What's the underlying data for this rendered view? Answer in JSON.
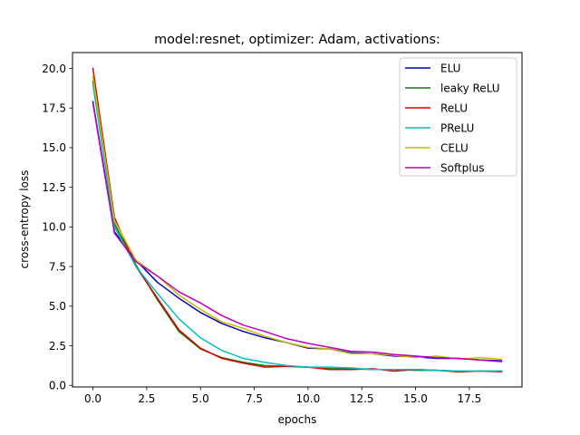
{
  "chart_data": {
    "type": "line",
    "title": "model:resnet, optimizer: Adam, activations:",
    "xlabel": "epochs",
    "ylabel": "cross-entropy loss",
    "xlim": [
      -0.95,
      19.95
    ],
    "ylim": [
      -0.1,
      21.0
    ],
    "xticks": [
      "0.0",
      "2.5",
      "5.0",
      "7.5",
      "10.0",
      "12.5",
      "15.0",
      "17.5"
    ],
    "yticks": [
      "0.0",
      "2.5",
      "5.0",
      "7.5",
      "10.0",
      "12.5",
      "15.0",
      "17.5",
      "20.0"
    ],
    "grid": false,
    "legend_position": "upper right",
    "x": [
      0,
      1,
      2,
      3,
      4,
      5,
      6,
      7,
      8,
      9,
      10,
      11,
      12,
      13,
      14,
      15,
      16,
      17,
      18,
      19
    ],
    "series": [
      {
        "name": "ELU",
        "color": "#0000bf",
        "values": [
          17.9,
          9.7,
          7.9,
          6.5,
          5.5,
          4.6,
          3.9,
          3.4,
          3.0,
          2.7,
          2.35,
          2.3,
          2.05,
          2.0,
          1.85,
          1.8,
          1.7,
          1.7,
          1.6,
          1.55
        ]
      },
      {
        "name": "leaky ReLU",
        "color": "#008000",
        "values": [
          19.2,
          10.2,
          7.6,
          5.4,
          3.4,
          2.3,
          1.75,
          1.45,
          1.25,
          1.2,
          1.15,
          1.05,
          1.05,
          1.0,
          1.0,
          0.95,
          0.95,
          0.9,
          0.9,
          0.9
        ]
      },
      {
        "name": "ReLU",
        "color": "#e00000",
        "values": [
          20.0,
          10.6,
          7.5,
          5.5,
          3.5,
          2.35,
          1.7,
          1.4,
          1.15,
          1.2,
          1.15,
          1.0,
          1.0,
          1.05,
          0.9,
          1.0,
          0.95,
          0.85,
          0.9,
          0.85
        ]
      },
      {
        "name": "PReLU",
        "color": "#00bfbf",
        "values": [
          19.0,
          10.0,
          7.5,
          5.8,
          4.2,
          3.0,
          2.2,
          1.7,
          1.45,
          1.25,
          1.15,
          1.15,
          1.1,
          1.0,
          1.0,
          1.0,
          0.95,
          0.9,
          0.9,
          0.9
        ]
      },
      {
        "name": "CELU",
        "color": "#bfbf00",
        "values": [
          19.5,
          10.4,
          7.9,
          6.9,
          5.7,
          4.8,
          4.0,
          3.6,
          3.1,
          2.7,
          2.4,
          2.3,
          2.0,
          2.0,
          1.9,
          1.75,
          1.85,
          1.65,
          1.75,
          1.65
        ]
      },
      {
        "name": "Softplus",
        "color": "#bf00bf",
        "values": [
          17.8,
          9.6,
          7.8,
          6.9,
          5.9,
          5.2,
          4.4,
          3.8,
          3.4,
          2.95,
          2.65,
          2.4,
          2.15,
          2.1,
          1.95,
          1.85,
          1.75,
          1.7,
          1.6,
          1.5
        ]
      }
    ]
  }
}
